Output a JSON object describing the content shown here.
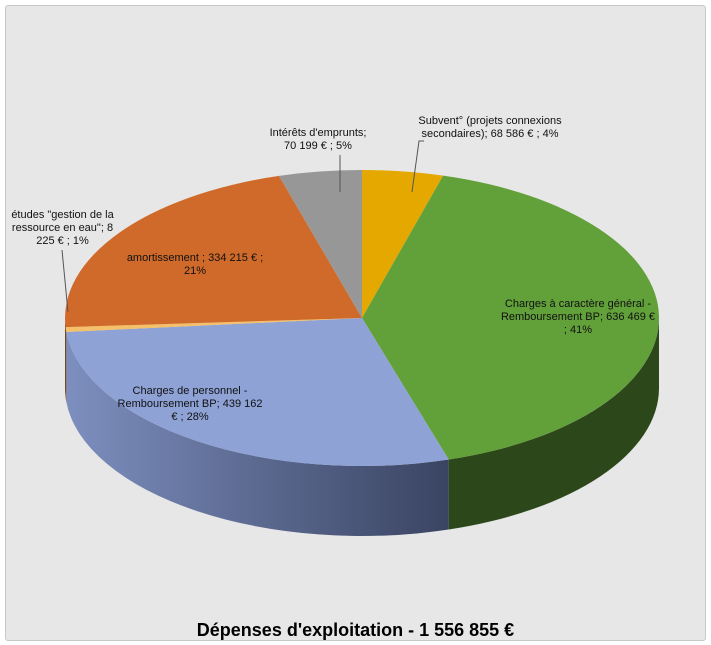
{
  "chart_data": {
    "type": "pie",
    "title": "Dépenses d'exploitation  - 1 556 855 €",
    "categories": [
      "Subvent° (projets connexions secondaires);",
      "Charges à caractère général - Remboursement BP;",
      "Charges de personnel - Remboursement BP;",
      "études \"gestion de la ressource en eau\";",
      "amortissement  ;",
      "Intérêts d'emprunts;"
    ],
    "values": [
      68586,
      636469,
      439162,
      8225,
      334215,
      70199
    ],
    "value_labels": [
      "68 586 € ; 4%",
      "636 469 € ; 41%",
      "439 162 € ; 28%",
      "8 225 € ; 1%",
      "334 215 € ; 21%",
      "70 199 € ; 5%"
    ],
    "colors": [
      "#e5a800",
      "#62a03a",
      "#8ea2d6",
      "#f4c06a",
      "#d06a2a",
      "#979797"
    ]
  }
}
